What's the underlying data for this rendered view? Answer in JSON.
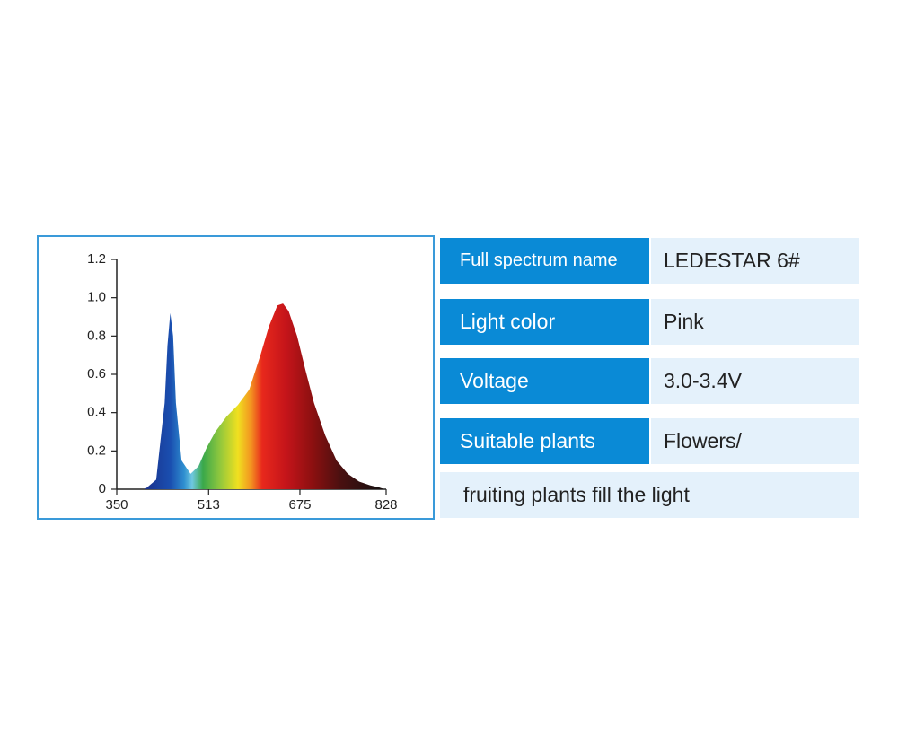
{
  "chart_data": {
    "type": "area",
    "x": [
      400,
      420,
      435,
      440,
      445,
      450,
      455,
      465,
      481,
      495,
      510,
      525,
      545,
      565,
      585,
      605,
      620,
      635,
      645,
      655,
      670,
      685,
      700,
      720,
      740,
      760,
      780,
      800,
      815,
      825
    ],
    "values": [
      0,
      0.05,
      0.45,
      0.75,
      0.92,
      0.8,
      0.45,
      0.15,
      0.08,
      0.12,
      0.22,
      0.3,
      0.38,
      0.44,
      0.52,
      0.7,
      0.85,
      0.96,
      0.97,
      0.93,
      0.8,
      0.62,
      0.45,
      0.28,
      0.15,
      0.08,
      0.04,
      0.02,
      0.01,
      0
    ],
    "xlim": [
      350,
      828
    ],
    "xticks": [
      350,
      513,
      675,
      828
    ],
    "ylim": [
      0,
      1.2
    ],
    "yticks": [
      0,
      0.2,
      0.4,
      0.6,
      0.8,
      {
        "value": 1,
        "label": "1.0"
      },
      1.2
    ]
  },
  "table": {
    "rows": [
      [
        "Full spectrum name",
        "LEDESTAR 6#"
      ],
      [
        "Light color",
        "Pink"
      ],
      [
        "Voltage",
        "3.0-3.4V"
      ],
      [
        "Suitable plants",
        "Flowers/"
      ],
      [
        "fruiting plants fill the light"
      ]
    ]
  }
}
